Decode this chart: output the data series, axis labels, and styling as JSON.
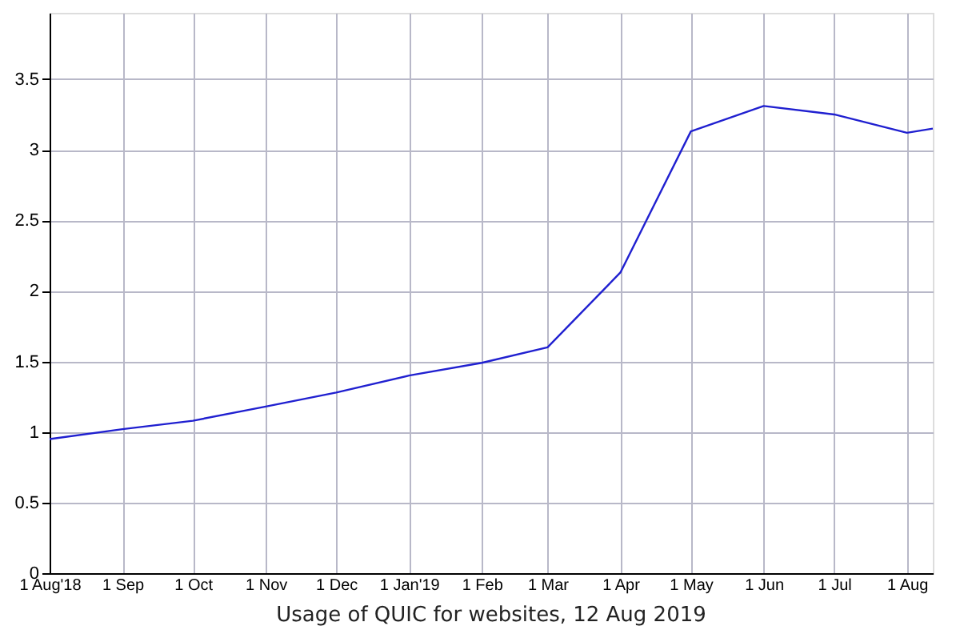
{
  "chart_data": {
    "type": "line",
    "title": "Usage of QUIC for websites, 12 Aug 2019",
    "x": [
      "2018-08-01",
      "2018-09-01",
      "2018-10-01",
      "2018-11-01",
      "2018-12-01",
      "2019-01-01",
      "2019-02-01",
      "2019-03-01",
      "2019-04-01",
      "2019-05-01",
      "2019-06-01",
      "2019-07-01",
      "2019-08-01",
      "2019-08-12"
    ],
    "series": [
      {
        "color": "#2020d0",
        "values": [
          0.95,
          1.02,
          1.08,
          1.18,
          1.28,
          1.4,
          1.49,
          1.6,
          2.13,
          3.13,
          3.31,
          3.25,
          3.12,
          3.15
        ]
      }
    ],
    "xlim": [
      "2018-08-01",
      "2019-08-12"
    ],
    "xticks": [
      {
        "value": "2018-08-01",
        "label": "1 Aug'18"
      },
      {
        "value": "2018-09-01",
        "label": "1 Sep"
      },
      {
        "value": "2018-10-01",
        "label": "1 Oct"
      },
      {
        "value": "2018-11-01",
        "label": "1 Nov"
      },
      {
        "value": "2018-12-01",
        "label": "1 Dec"
      },
      {
        "value": "2019-01-01",
        "label": "1 Jan'19"
      },
      {
        "value": "2019-02-01",
        "label": "1 Feb"
      },
      {
        "value": "2019-03-01",
        "label": "1 Mar"
      },
      {
        "value": "2019-04-01",
        "label": "1 Apr"
      },
      {
        "value": "2019-05-01",
        "label": "1 May"
      },
      {
        "value": "2019-06-01",
        "label": "1 Jun"
      },
      {
        "value": "2019-07-01",
        "label": "1 Jul"
      },
      {
        "value": "2019-08-01",
        "label": "1 Aug"
      }
    ],
    "ylim": [
      0,
      3.97
    ],
    "yticks": [
      0,
      0.5,
      1,
      1.5,
      2,
      2.5,
      3,
      3.5
    ],
    "grid": true,
    "marker": "none",
    "line_style": "solid"
  }
}
